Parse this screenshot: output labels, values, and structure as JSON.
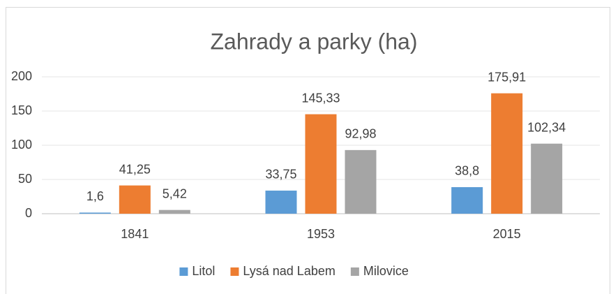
{
  "chart_data": {
    "type": "bar",
    "title": "Zahrady a parky (ha)",
    "categories": [
      "1841",
      "1953",
      "2015"
    ],
    "series": [
      {
        "name": "Litol",
        "color": "#5b9bd5",
        "values": [
          1.6,
          33.75,
          38.8
        ],
        "value_labels": [
          "1,6",
          "33,75",
          "38,8"
        ]
      },
      {
        "name": "Lysá nad Labem",
        "color": "#ed7d31",
        "values": [
          41.25,
          145.33,
          175.91
        ],
        "value_labels": [
          "41,25",
          "145,33",
          "175,91"
        ]
      },
      {
        "name": "Milovice",
        "color": "#a5a5a5",
        "values": [
          5.42,
          92.98,
          102.34
        ],
        "value_labels": [
          "5,42",
          "92,98",
          "102,34"
        ]
      }
    ],
    "ylim": [
      0,
      200
    ],
    "yticks": [
      0,
      50,
      100,
      150,
      200
    ],
    "grid": true,
    "legend": "bottom"
  }
}
